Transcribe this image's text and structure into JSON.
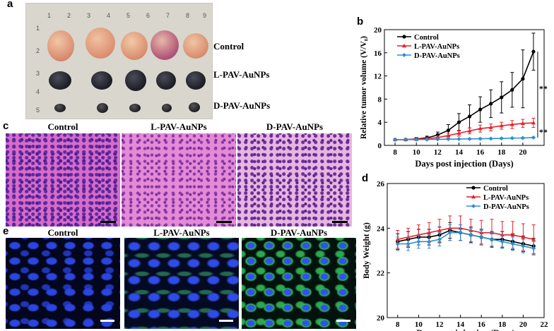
{
  "panels": {
    "a": {
      "letter": "a",
      "groups": [
        "Control",
        "L-PAV-AuNPs",
        "D-PAV-AuNPs"
      ],
      "ruler_top": [
        "1",
        "2",
        "3",
        "4",
        "5",
        "6",
        "7",
        "8",
        "9"
      ],
      "ruler_left": [
        "1",
        "2",
        "3",
        "4",
        "5"
      ]
    },
    "b": {
      "letter": "b"
    },
    "c": {
      "letter": "c",
      "titles": [
        "Control",
        "L-PAV-AuNPs",
        "D-PAV-AuNPs"
      ]
    },
    "d": {
      "letter": "d"
    },
    "e": {
      "letter": "e",
      "titles": [
        "Control",
        "L-PAV-AuNPs",
        "D-PAV-AuNPs"
      ]
    }
  },
  "chart_data": [
    {
      "id": "b",
      "type": "line",
      "xlabel": "Days post injection (Days)",
      "ylabel": "Relative tumor volume (V/V₀)",
      "xlim": [
        7,
        22
      ],
      "ylim": [
        0,
        20
      ],
      "xticks": [
        8,
        10,
        12,
        14,
        16,
        18,
        20
      ],
      "yticks": [
        0,
        4,
        8,
        12,
        16,
        20
      ],
      "legend": "top-left",
      "x": [
        8,
        9,
        10,
        11,
        12,
        13,
        14,
        15,
        16,
        17,
        18,
        19,
        20,
        21
      ],
      "series": [
        {
          "name": "Control",
          "color": "#000000",
          "values": [
            1.0,
            1.0,
            1.1,
            1.3,
            1.8,
            2.6,
            4.0,
            5.0,
            6.2,
            7.2,
            8.3,
            9.6,
            11.5,
            16.2
          ],
          "errors": [
            0.1,
            0.15,
            0.25,
            0.3,
            0.5,
            1.0,
            1.5,
            2.0,
            2.2,
            2.4,
            2.7,
            3.0,
            5.0,
            3.2
          ]
        },
        {
          "name": "L-PAV-AuNPs",
          "color": "#e8202a",
          "values": [
            1.0,
            1.0,
            1.05,
            1.15,
            1.35,
            1.7,
            2.1,
            2.5,
            2.9,
            3.1,
            3.4,
            3.6,
            3.8,
            3.9
          ],
          "errors": [
            0.05,
            0.1,
            0.15,
            0.2,
            0.3,
            0.4,
            0.5,
            0.5,
            0.6,
            0.6,
            0.6,
            0.7,
            0.7,
            0.8
          ]
        },
        {
          "name": "D-PAV-AuNPs",
          "color": "#2b8fd0",
          "values": [
            1.0,
            1.0,
            1.0,
            1.02,
            1.05,
            1.08,
            1.1,
            1.12,
            1.15,
            1.18,
            1.2,
            1.25,
            1.28,
            1.35
          ],
          "errors": [
            0.05,
            0.05,
            0.05,
            0.06,
            0.06,
            0.07,
            0.07,
            0.08,
            0.08,
            0.08,
            0.09,
            0.09,
            0.1,
            0.1
          ]
        }
      ],
      "annotations": [
        "**",
        "**"
      ]
    },
    {
      "id": "d",
      "type": "line",
      "xlabel": "Days post injection (Days)",
      "ylabel": "Body Weight (g)",
      "xlim": [
        7,
        22
      ],
      "ylim": [
        20,
        26
      ],
      "xticks": [
        8,
        10,
        12,
        14,
        16,
        18,
        20,
        22
      ],
      "yticks": [
        20,
        22,
        24,
        26
      ],
      "legend": "top-right",
      "x": [
        8,
        9,
        10,
        11,
        12,
        13,
        14,
        15,
        16,
        17,
        18,
        19,
        20,
        21
      ],
      "series": [
        {
          "name": "Control",
          "color": "#000000",
          "values": [
            23.4,
            23.5,
            23.6,
            23.6,
            23.7,
            23.9,
            23.8,
            23.7,
            23.6,
            23.5,
            23.5,
            23.4,
            23.3,
            23.2
          ],
          "errors": [
            0.35,
            0.35,
            0.35,
            0.35,
            0.35,
            0.35,
            0.35,
            0.35,
            0.35,
            0.35,
            0.35,
            0.35,
            0.35,
            0.35
          ]
        },
        {
          "name": "L-PAV-AuNPs",
          "color": "#e8202a",
          "values": [
            23.5,
            23.6,
            23.7,
            23.8,
            23.9,
            24.0,
            24.0,
            23.9,
            23.8,
            23.8,
            23.7,
            23.7,
            23.6,
            23.5
          ],
          "errors": [
            0.4,
            0.4,
            0.45,
            0.45,
            0.5,
            0.55,
            0.55,
            0.5,
            0.55,
            0.6,
            0.6,
            0.6,
            0.6,
            0.65
          ]
        },
        {
          "name": "D-PAV-AuNPs",
          "color": "#2b8fd0",
          "values": [
            23.3,
            23.3,
            23.4,
            23.4,
            23.5,
            23.8,
            23.8,
            23.7,
            23.6,
            23.5,
            23.4,
            23.3,
            23.2,
            23.1
          ],
          "errors": [
            0.3,
            0.3,
            0.3,
            0.3,
            0.3,
            0.35,
            0.35,
            0.3,
            0.3,
            0.3,
            0.3,
            0.3,
            0.3,
            0.3
          ]
        }
      ]
    }
  ]
}
